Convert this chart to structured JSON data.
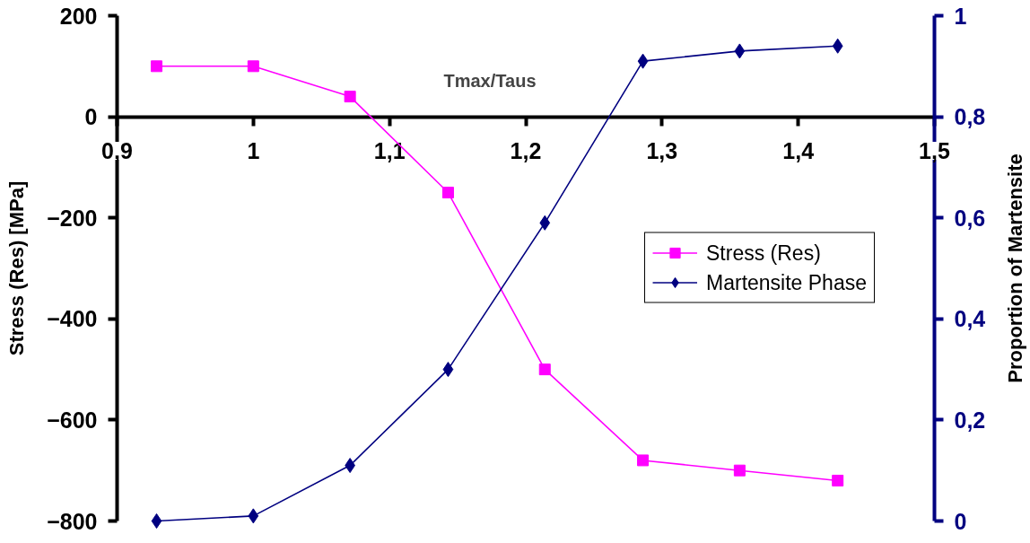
{
  "chart_data": {
    "type": "line",
    "xlabel": "Tmax/Taus",
    "ylabel": "Stress (Res) [MPa]",
    "y2label": "Proportion of Martensite",
    "x": [
      0.929,
      1,
      1.071,
      1.143,
      1.214,
      1.286,
      1.357,
      1.429
    ],
    "series": [
      {
        "name": "Stress (Res)",
        "color": "#ff00ff",
        "marker": "square",
        "values": [
          100,
          100,
          40,
          -150,
          -500,
          -680,
          -700,
          -720
        ]
      },
      {
        "name": "Martensite Phase",
        "color": "#000080",
        "marker": "diamond",
        "axis": "y2",
        "values": [
          0,
          0.01,
          0.11,
          0.3,
          0.59,
          0.91,
          0.93,
          0.94
        ]
      }
    ],
    "xlim": [
      0.9,
      1.5
    ],
    "xticks": [
      {
        "value": 0.9,
        "label": "0,9"
      },
      1,
      {
        "value": 1.1,
        "label": "1,1"
      },
      {
        "value": 1.2,
        "label": "1,2"
      },
      {
        "value": 1.3,
        "label": "1,3"
      },
      {
        "value": 1.4,
        "label": "1,4"
      },
      {
        "value": 1.5,
        "label": "1,5"
      }
    ],
    "ylim": [
      -800,
      200
    ],
    "yticks": [
      -800,
      -600,
      -400,
      -200,
      0,
      200
    ],
    "y2lim": [
      0,
      1
    ],
    "y2ticks": [
      0,
      {
        "value": 0.2,
        "label": "0,2"
      },
      {
        "value": 0.4,
        "label": "0,4"
      },
      {
        "value": 0.6,
        "label": "0,6"
      },
      {
        "value": 0.8,
        "label": "0,8"
      },
      1
    ],
    "grid": false,
    "legend": "right",
    "line_style": "solid"
  }
}
